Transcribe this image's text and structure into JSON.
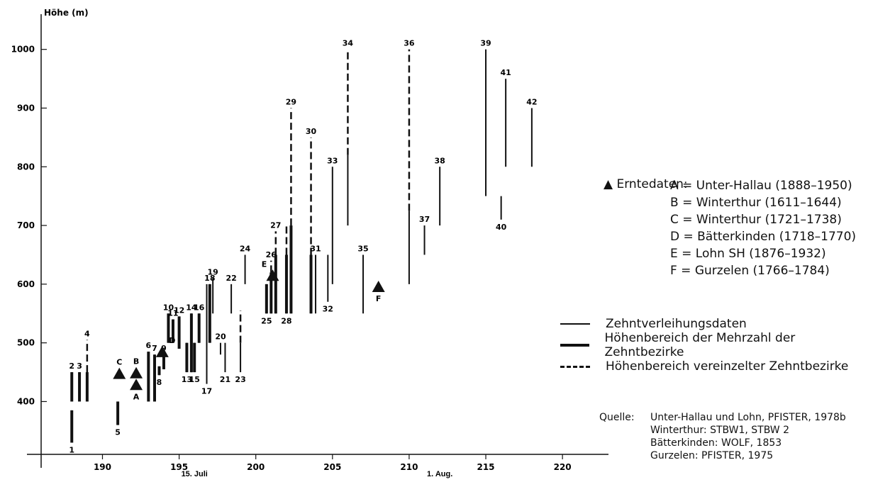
{
  "chart_data": {
    "type": "range",
    "ylabel": "Höhe (m)",
    "xticks": [
      190,
      195,
      200,
      205,
      210,
      215,
      220
    ],
    "yticks": [
      400,
      500,
      600,
      700,
      800,
      900,
      1000
    ],
    "xlim": [
      186,
      223
    ],
    "ylim": [
      310,
      1060
    ],
    "date_annotations": [
      {
        "label": "15. Juli",
        "x": 196
      },
      {
        "label": "1. Aug.",
        "x": 212
      }
    ],
    "ranges": [
      {
        "label": "1",
        "x": 188.0,
        "thin": [
          330,
          385
        ],
        "thick": [
          330,
          385
        ],
        "dash": null
      },
      {
        "label": "2",
        "x": 188.0,
        "thin": [
          400,
          450
        ],
        "thick": [
          400,
          450
        ],
        "dash": null
      },
      {
        "label": "3",
        "x": 188.5,
        "thin": [
          400,
          450
        ],
        "thick": [
          400,
          450
        ],
        "dash": null
      },
      {
        "label": "4",
        "x": 189.0,
        "thin": [
          400,
          450
        ],
        "thick": [
          400,
          450
        ],
        "dash": [
          450,
          505
        ]
      },
      {
        "label": "5",
        "x": 191.0,
        "thin": [
          360,
          400
        ],
        "thick": [
          360,
          400
        ],
        "dash": null
      },
      {
        "label": "6",
        "x": 193.0,
        "thin": [
          400,
          485
        ],
        "thick": [
          400,
          485
        ],
        "dash": null
      },
      {
        "label": "7",
        "x": 193.4,
        "thin": [
          400,
          480
        ],
        "thick": [
          400,
          480
        ],
        "dash": null
      },
      {
        "label": "8",
        "x": 193.7,
        "thin": [
          445,
          460
        ],
        "thick": [
          445,
          460
        ],
        "dash": null
      },
      {
        "label": "9",
        "x": 194.0,
        "thin": [
          455,
          480
        ],
        "thick": [
          455,
          480
        ],
        "dash": null
      },
      {
        "label": "10",
        "x": 194.3,
        "thin": [
          500,
          550
        ],
        "thick": [
          500,
          550
        ],
        "dash": null
      },
      {
        "label": "11",
        "x": 194.6,
        "thin": [
          500,
          540
        ],
        "thick": [
          500,
          540
        ],
        "dash": null
      },
      {
        "label": "12",
        "x": 195.0,
        "thin": [
          490,
          545
        ],
        "thick": [
          490,
          545
        ],
        "dash": null
      },
      {
        "label": "13",
        "x": 195.5,
        "thin": [
          450,
          500
        ],
        "thick": [
          450,
          500
        ],
        "dash": null
      },
      {
        "label": "14",
        "x": 195.8,
        "thin": [
          450,
          550
        ],
        "thick": [
          450,
          550
        ],
        "dash": null
      },
      {
        "label": "15",
        "x": 196.0,
        "thin": [
          450,
          500
        ],
        "thick": [
          450,
          500
        ],
        "dash": null
      },
      {
        "label": "16",
        "x": 196.3,
        "thin": [
          500,
          550
        ],
        "thick": [
          500,
          550
        ],
        "dash": null
      },
      {
        "label": "17",
        "x": 196.8,
        "thin": [
          430,
          600
        ],
        "thick": null,
        "dash": null
      },
      {
        "label": "18",
        "x": 197.0,
        "thin": [
          500,
          600
        ],
        "thick": [
          500,
          600
        ],
        "dash": null
      },
      {
        "label": "19",
        "x": 197.2,
        "thin": [
          550,
          610
        ],
        "thick": null,
        "dash": null
      },
      {
        "label": "20",
        "x": 197.7,
        "thin": [
          480,
          500
        ],
        "thick": null,
        "dash": null
      },
      {
        "label": "21",
        "x": 198.0,
        "thin": [
          450,
          500
        ],
        "thick": null,
        "dash": null
      },
      {
        "label": "22",
        "x": 198.4,
        "thin": [
          550,
          600
        ],
        "thick": null,
        "dash": null
      },
      {
        "label": "23",
        "x": 199.0,
        "thin": [
          450,
          500
        ],
        "thick": null,
        "dash": [
          500,
          555
        ]
      },
      {
        "label": "24",
        "x": 199.3,
        "thin": [
          600,
          650
        ],
        "thick": null,
        "dash": null
      },
      {
        "label": "25",
        "x": 200.7,
        "thin": [
          550,
          600
        ],
        "thick": [
          550,
          600
        ],
        "dash": null
      },
      {
        "label": "26",
        "x": 201.0,
        "thin": [
          550,
          620
        ],
        "thick": [
          550,
          620
        ],
        "dash": [
          620,
          640
        ]
      },
      {
        "label": "27",
        "x": 201.3,
        "thin": [
          550,
          650
        ],
        "thick": [
          550,
          650
        ],
        "dash": [
          650,
          690
        ]
      },
      {
        "label": "28",
        "x": 202.0,
        "thin": [
          550,
          650
        ],
        "thick": [
          550,
          650
        ],
        "dash": [
          650,
          700
        ]
      },
      {
        "label": "29",
        "x": 202.3,
        "thin": [
          550,
          700
        ],
        "thick": [
          550,
          700
        ],
        "dash": [
          700,
          900
        ]
      },
      {
        "label": "30",
        "x": 203.6,
        "thin": [
          550,
          650
        ],
        "thick": [
          550,
          650
        ],
        "dash": [
          650,
          850
        ]
      },
      {
        "label": "31",
        "x": 203.9,
        "thin": [
          550,
          650
        ],
        "thick": null,
        "dash": null
      },
      {
        "label": "32",
        "x": 204.7,
        "thin": [
          570,
          650
        ],
        "thick": null,
        "dash": null
      },
      {
        "label": "33",
        "x": 205.0,
        "thin": [
          600,
          800
        ],
        "thick": null,
        "dash": null
      },
      {
        "label": "34",
        "x": 206.0,
        "thin": [
          700,
          820
        ],
        "thick": null,
        "dash": [
          820,
          1000
        ]
      },
      {
        "label": "35",
        "x": 207.0,
        "thin": [
          550,
          650
        ],
        "thick": null,
        "dash": null
      },
      {
        "label": "36",
        "x": 210.0,
        "thin": [
          600,
          725
        ],
        "thick": null,
        "dash": [
          725,
          1000
        ]
      },
      {
        "label": "37",
        "x": 211.0,
        "thin": [
          650,
          700
        ],
        "thick": null,
        "dash": null
      },
      {
        "label": "38",
        "x": 212.0,
        "thin": [
          700,
          800
        ],
        "thick": null,
        "dash": null
      },
      {
        "label": "39",
        "x": 215.0,
        "thin": [
          750,
          1000
        ],
        "thick": null,
        "dash": null
      },
      {
        "label": "40",
        "x": 216.0,
        "thin": [
          710,
          750
        ],
        "thick": null,
        "dash": null
      },
      {
        "label": "41",
        "x": 216.3,
        "thin": [
          800,
          950
        ],
        "thick": null,
        "dash": null
      },
      {
        "label": "42",
        "x": 218.0,
        "thin": [
          800,
          900
        ],
        "thick": null,
        "dash": null
      }
    ],
    "harvest_points": [
      {
        "label": "A",
        "x": 192.2,
        "y": 428
      },
      {
        "label": "B",
        "x": 192.2,
        "y": 448
      },
      {
        "label": "C",
        "x": 191.1,
        "y": 447
      },
      {
        "label": "D",
        "x": 193.9,
        "y": 484
      },
      {
        "label": "E",
        "x": 201.1,
        "y": 614
      },
      {
        "label": "F",
        "x": 208.0,
        "y": 595
      }
    ]
  },
  "legend": {
    "harvest_title": "Erntedaten:",
    "harvest_items": [
      "A = Unter-Hallau (1888–1950)",
      "B = Winterthur (1611–1644)",
      "C = Winterthur (1721–1738)",
      "D = Bätterkinden (1718–1770)",
      "E = Lohn SH (1876–1932)",
      "F = Gurzelen (1766–1784)"
    ],
    "line_items": [
      "Zehntverleihungsdaten",
      "Höhenbereich der Mehrzahl der Zehntbezirke",
      "Höhenbereich vereinzelter Zehntbezirke"
    ]
  },
  "source": {
    "label": "Quelle:",
    "lines": [
      "Unter-Hallau und Lohn, PFISTER, 1978b",
      "Winterthur: STBW1, STBW 2",
      "Bätterkinden: WOLF, 1853",
      "Gurzelen: PFISTER, 1975"
    ]
  }
}
